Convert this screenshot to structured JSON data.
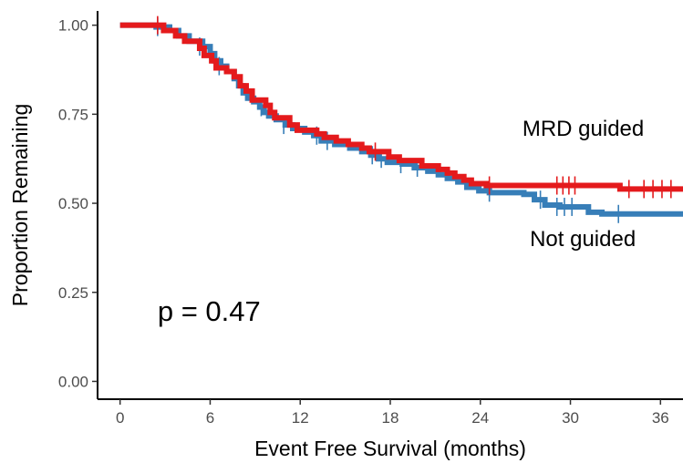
{
  "chart_data": {
    "type": "line",
    "xlabel": "Event Free Survival (months)",
    "ylabel": "Proportion Remaining",
    "xlim": [
      -1.5,
      37.5
    ],
    "ylim": [
      -0.05,
      1.04
    ],
    "x_ticks": [
      0,
      6,
      12,
      18,
      24,
      30,
      36
    ],
    "x_tick_labels": [
      "0",
      "6",
      "12",
      "18",
      "24",
      "30",
      "36"
    ],
    "y_ticks": [
      0.0,
      0.25,
      0.5,
      0.75,
      1.0
    ],
    "y_tick_labels": [
      "0.00",
      "0.25",
      "0.50",
      "0.75",
      "1.00"
    ],
    "grid": false,
    "annotations": [
      {
        "text": "p = 0.47",
        "x": 2.5,
        "y": 0.17
      },
      {
        "text": "MRD guided",
        "x": 26.8,
        "y": 0.69
      },
      {
        "text": "Not guided",
        "x": 27.3,
        "y": 0.38
      }
    ],
    "series": [
      {
        "name": "Not guided",
        "color": "#377eb8",
        "steps": [
          [
            0,
            1.0
          ],
          [
            2.4,
            0.995
          ],
          [
            3.3,
            0.985
          ],
          [
            3.9,
            0.97
          ],
          [
            4.6,
            0.955
          ],
          [
            5.5,
            0.94
          ],
          [
            6.0,
            0.92
          ],
          [
            6.3,
            0.9
          ],
          [
            6.7,
            0.885
          ],
          [
            7.1,
            0.87
          ],
          [
            7.6,
            0.85
          ],
          [
            7.9,
            0.83
          ],
          [
            8.2,
            0.81
          ],
          [
            8.5,
            0.795
          ],
          [
            8.9,
            0.785
          ],
          [
            9.3,
            0.77
          ],
          [
            9.6,
            0.755
          ],
          [
            9.9,
            0.745
          ],
          [
            10.4,
            0.735
          ],
          [
            11.0,
            0.72
          ],
          [
            11.5,
            0.71
          ],
          [
            12.3,
            0.7
          ],
          [
            12.9,
            0.69
          ],
          [
            13.4,
            0.675
          ],
          [
            14.3,
            0.665
          ],
          [
            15.3,
            0.655
          ],
          [
            16.1,
            0.645
          ],
          [
            16.7,
            0.635
          ],
          [
            17.2,
            0.625
          ],
          [
            17.8,
            0.615
          ],
          [
            18.8,
            0.61
          ],
          [
            19.6,
            0.6
          ],
          [
            20.5,
            0.59
          ],
          [
            21.2,
            0.58
          ],
          [
            21.8,
            0.57
          ],
          [
            22.5,
            0.56
          ],
          [
            23.1,
            0.545
          ],
          [
            23.9,
            0.535
          ],
          [
            24.6,
            0.53
          ],
          [
            26.9,
            0.525
          ],
          [
            27.6,
            0.51
          ],
          [
            28.3,
            0.495
          ],
          [
            29.3,
            0.49
          ],
          [
            31.2,
            0.475
          ],
          [
            32.1,
            0.47
          ],
          [
            37.5,
            0.47
          ]
        ],
        "censors": [
          [
            2.5,
            0.995
          ],
          [
            5.3,
            0.94
          ],
          [
            6.6,
            0.885
          ],
          [
            9.4,
            0.77
          ],
          [
            10.9,
            0.72
          ],
          [
            13.1,
            0.69
          ],
          [
            13.8,
            0.675
          ],
          [
            16.8,
            0.635
          ],
          [
            17.4,
            0.625
          ],
          [
            18.7,
            0.61
          ],
          [
            19.8,
            0.6
          ],
          [
            24.6,
            0.53
          ],
          [
            28.0,
            0.51
          ],
          [
            29.1,
            0.49
          ],
          [
            29.6,
            0.49
          ],
          [
            30.1,
            0.49
          ],
          [
            33.2,
            0.47
          ]
        ]
      },
      {
        "name": "MRD guided",
        "color": "#e41a1c",
        "steps": [
          [
            0,
            1.0
          ],
          [
            2.9,
            0.985
          ],
          [
            3.7,
            0.97
          ],
          [
            4.3,
            0.955
          ],
          [
            5.3,
            0.935
          ],
          [
            5.6,
            0.915
          ],
          [
            6.1,
            0.9
          ],
          [
            6.4,
            0.88
          ],
          [
            7.1,
            0.87
          ],
          [
            7.6,
            0.855
          ],
          [
            8.0,
            0.83
          ],
          [
            8.4,
            0.815
          ],
          [
            8.8,
            0.79
          ],
          [
            9.7,
            0.775
          ],
          [
            10.0,
            0.755
          ],
          [
            10.3,
            0.74
          ],
          [
            11.3,
            0.72
          ],
          [
            11.8,
            0.705
          ],
          [
            13.1,
            0.695
          ],
          [
            13.6,
            0.685
          ],
          [
            14.4,
            0.675
          ],
          [
            15.2,
            0.665
          ],
          [
            16.1,
            0.655
          ],
          [
            16.6,
            0.645
          ],
          [
            17.9,
            0.63
          ],
          [
            18.6,
            0.62
          ],
          [
            20.1,
            0.605
          ],
          [
            21.2,
            0.595
          ],
          [
            21.8,
            0.585
          ],
          [
            22.3,
            0.575
          ],
          [
            22.9,
            0.565
          ],
          [
            23.4,
            0.555
          ],
          [
            24.4,
            0.55
          ],
          [
            33.3,
            0.54
          ],
          [
            37.5,
            0.54
          ]
        ],
        "censors": [
          [
            2.5,
            1.0
          ],
          [
            17.0,
            0.645
          ],
          [
            24.6,
            0.55
          ],
          [
            29.1,
            0.55
          ],
          [
            29.5,
            0.55
          ],
          [
            29.9,
            0.55
          ],
          [
            30.3,
            0.55
          ],
          [
            33.9,
            0.54
          ],
          [
            34.9,
            0.54
          ],
          [
            35.5,
            0.54
          ],
          [
            36.1,
            0.54
          ],
          [
            36.7,
            0.54
          ]
        ]
      }
    ]
  }
}
